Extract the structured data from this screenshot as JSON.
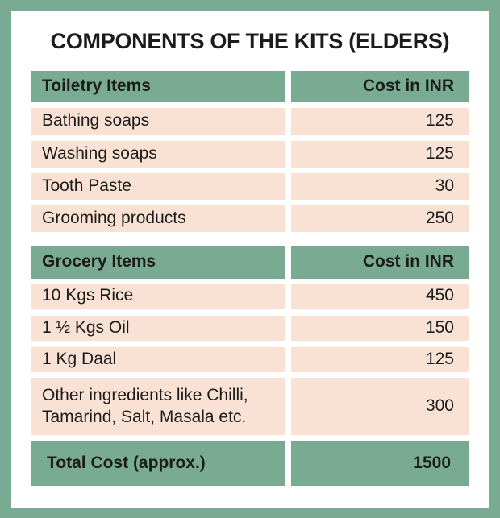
{
  "title": "COMPONENTS OF THE KITS (ELDERS)",
  "sections": [
    {
      "header": [
        "Toiletry Items",
        "Cost in INR"
      ],
      "rows": [
        [
          "Bathing soaps",
          125
        ],
        [
          "Washing soaps",
          125
        ],
        [
          "Tooth Paste",
          30
        ],
        [
          "Grooming products",
          250
        ]
      ]
    },
    {
      "header": [
        "Grocery Items",
        "Cost in INR"
      ],
      "rows": [
        [
          "10 Kgs Rice",
          450
        ],
        [
          "1 ½ Kgs Oil",
          150
        ],
        [
          "1 Kg Daal",
          125
        ],
        [
          "Other ingredients like Chilli,\nTamarind, Salt, Masala etc.",
          300
        ]
      ]
    }
  ],
  "total": {
    "label": "Total Cost (approx.)",
    "value": 1500
  }
}
